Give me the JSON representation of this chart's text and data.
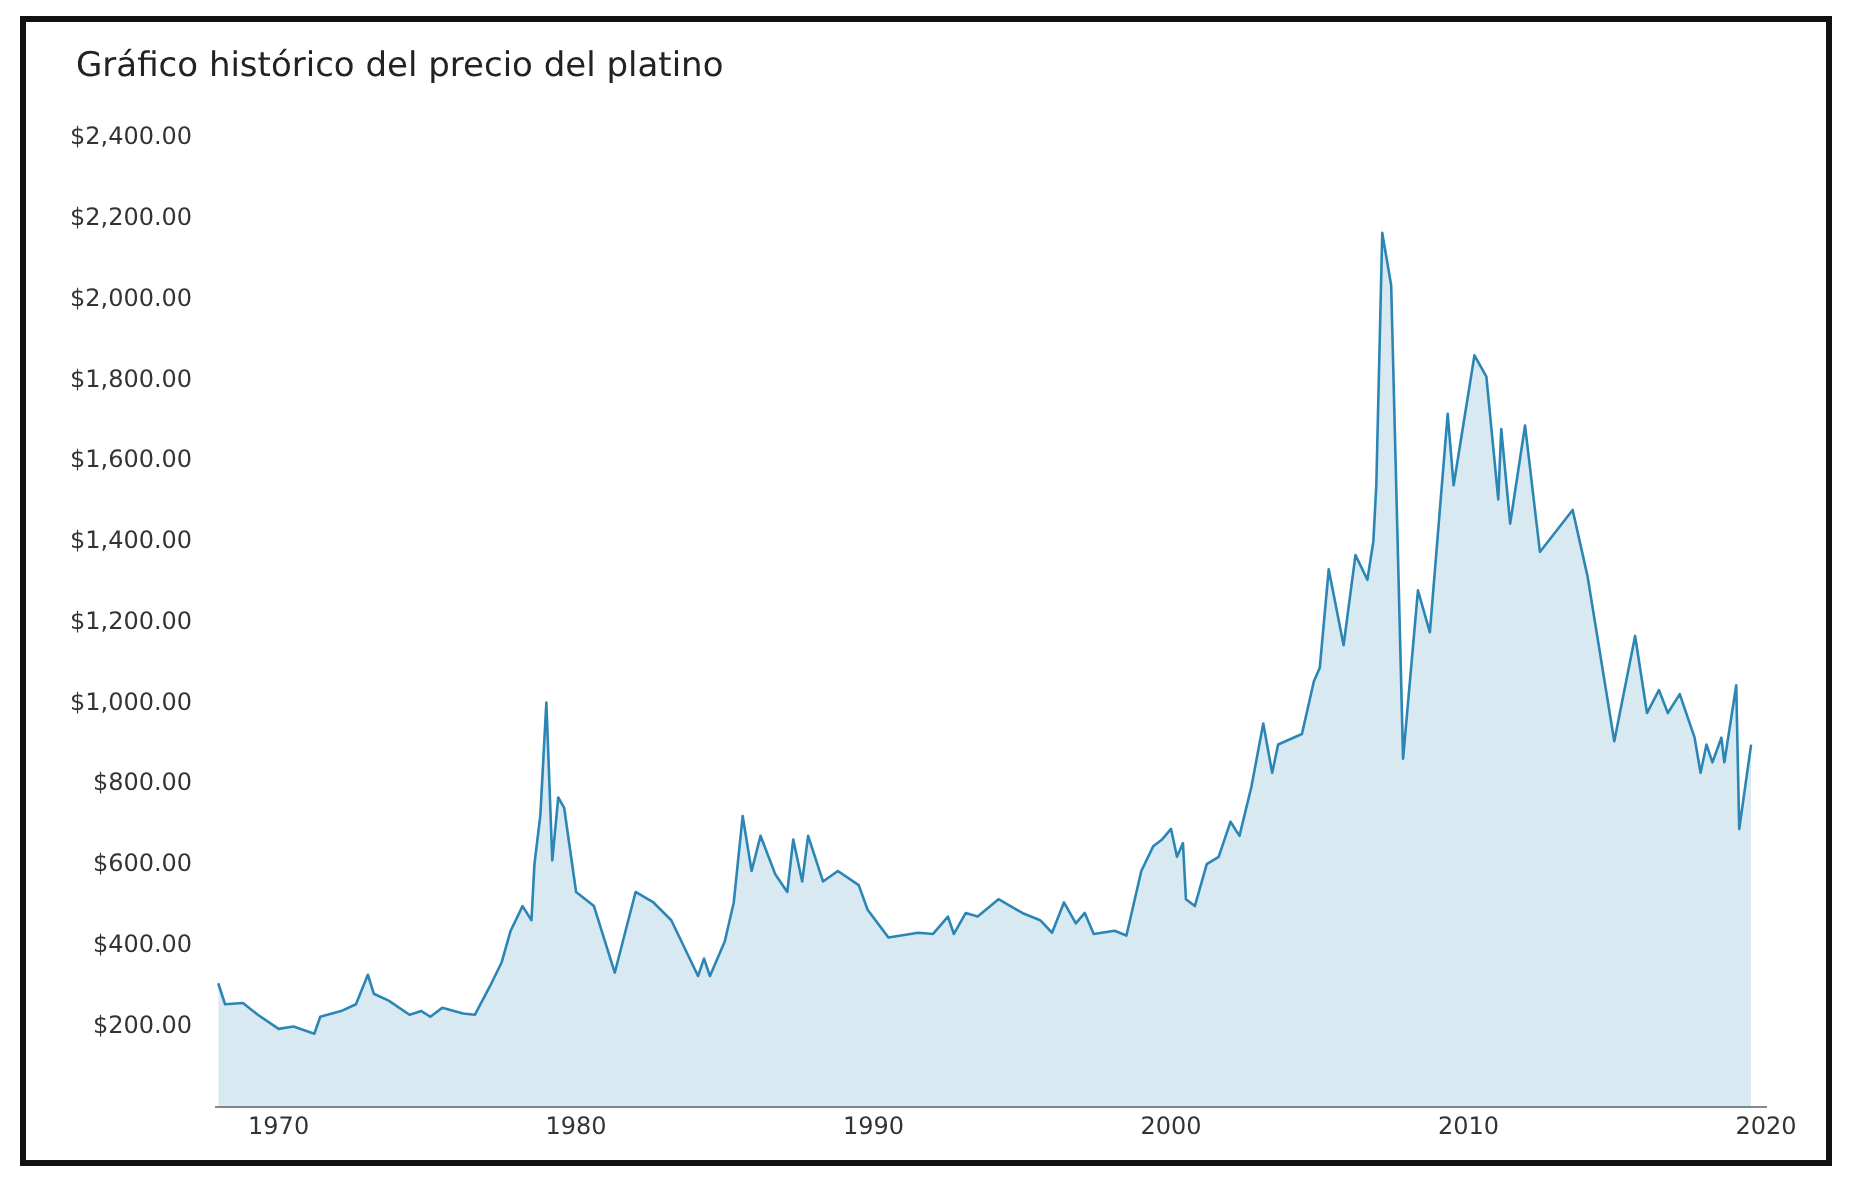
{
  "chart_data": {
    "type": "area",
    "title": "Gráfico histórico del precio del platino",
    "x": [
      1967.97,
      1968.2,
      1968.8,
      1969.3,
      1970,
      1970.5,
      1971.2,
      1971.4,
      1972.1,
      1972.6,
      1973.0,
      1973.2,
      1973.7,
      1974.4,
      1974.8,
      1975.1,
      1975.5,
      1976.2,
      1976.6,
      1977.1,
      1977.5,
      1977.8,
      1978.2,
      1978.5,
      1978.6,
      1978.8,
      1979.0,
      1979.2,
      1979.4,
      1979.6,
      1980.0,
      1980.6,
      1981.3,
      1982.0,
      1982.6,
      1983.2,
      1984.1,
      1984.3,
      1984.5,
      1985.0,
      1985.3,
      1985.6,
      1985.9,
      1986.2,
      1986.7,
      1987.1,
      1987.3,
      1987.6,
      1987.8,
      1988.3,
      1988.8,
      1989.5,
      1989.8,
      1990.5,
      1991.5,
      1992.0,
      1992.5,
      1992.7,
      1993.1,
      1993.5,
      1994.2,
      1995.0,
      1995.6,
      1996.0,
      1996.4,
      1996.8,
      1997.1,
      1997.4,
      1998.1,
      1998.5,
      1999.0,
      1999.4,
      1999.7,
      2000.0,
      2000.2,
      2000.4,
      2000.5,
      2000.8,
      2001.2,
      2001.6,
      2002.0,
      2002.3,
      2002.7,
      2003.1,
      2003.4,
      2003.6,
      2004.4,
      2004.8,
      2005.0,
      2005.3,
      2005.8,
      2006.2,
      2006.6,
      2006.8,
      2006.9,
      2007.1,
      2007.4,
      2007.8,
      2008.3,
      2008.7,
      2009.3,
      2009.5,
      2010.2,
      2010.6,
      2011.0,
      2011.1,
      2011.4,
      2011.9,
      2012.4,
      2013.5,
      2014.0,
      2014.9,
      2015.6,
      2016.0,
      2016.4,
      2016.7,
      2017.1,
      2017.6,
      2017.8,
      2018.0,
      2018.2,
      2018.5,
      2018.6,
      2019.0,
      2019.1,
      2019.5
    ],
    "series": [
      {
        "color": "#2b86b5",
        "values": [
          307,
          255,
          258,
          229,
          194,
          200,
          182,
          224,
          238,
          255,
          328,
          281,
          264,
          229,
          238,
          224,
          246,
          232,
          229,
          299,
          359,
          437,
          498,
          463,
          602,
          724,
          1002,
          611,
          767,
          741,
          533,
          498,
          333,
          533,
          507,
          463,
          325,
          368,
          325,
          411,
          507,
          721,
          585,
          672,
          576,
          533,
          663,
          559,
          672,
          559,
          585,
          550,
          489,
          420,
          432,
          429,
          472,
          429,
          481,
          472,
          515,
          481,
          463,
          432,
          507,
          455,
          481,
          429,
          437,
          425,
          585,
          646,
          663,
          689,
          620,
          654,
          515,
          498,
          602,
          620,
          707,
          672,
          793,
          950,
          828,
          898,
          924,
          1054,
          1088,
          1332,
          1144,
          1367,
          1306,
          1401,
          1540,
          2165,
          2035,
          863,
          1280,
          1176,
          1717,
          1540,
          1862,
          1809,
          1505,
          1679,
          1445,
          1688,
          1375,
          1479,
          1315,
          906,
          1167,
          976,
          1033,
          976,
          1023,
          915,
          828,
          898,
          854,
          915,
          854,
          1045,
          689,
          898
        ]
      }
    ],
    "xlim": [
      1967.9,
      2020
    ],
    "xticks": [
      1970,
      1980,
      1990,
      2000,
      2010,
      2020
    ],
    "ylim": [
      0,
      2400
    ],
    "yticks": [
      {
        "value": 200,
        "label": "$200.00"
      },
      {
        "value": 400,
        "label": "$400.00"
      },
      {
        "value": 600,
        "label": "$600.00"
      },
      {
        "value": 800,
        "label": "$800.00"
      },
      {
        "value": 1000,
        "label": "$1,000.00"
      },
      {
        "value": 1200,
        "label": "$1,200.00"
      },
      {
        "value": 1400,
        "label": "$1,400.00"
      },
      {
        "value": 1600,
        "label": "$1,600.00"
      },
      {
        "value": 1800,
        "label": "$1,800.00"
      },
      {
        "value": 2000,
        "label": "$2,000.00"
      },
      {
        "value": 2200,
        "label": "$2,200.00"
      },
      {
        "value": 2400,
        "label": "$2,400.00"
      }
    ],
    "grid": false,
    "legend": false,
    "marker": "none",
    "line_style": "solid"
  }
}
